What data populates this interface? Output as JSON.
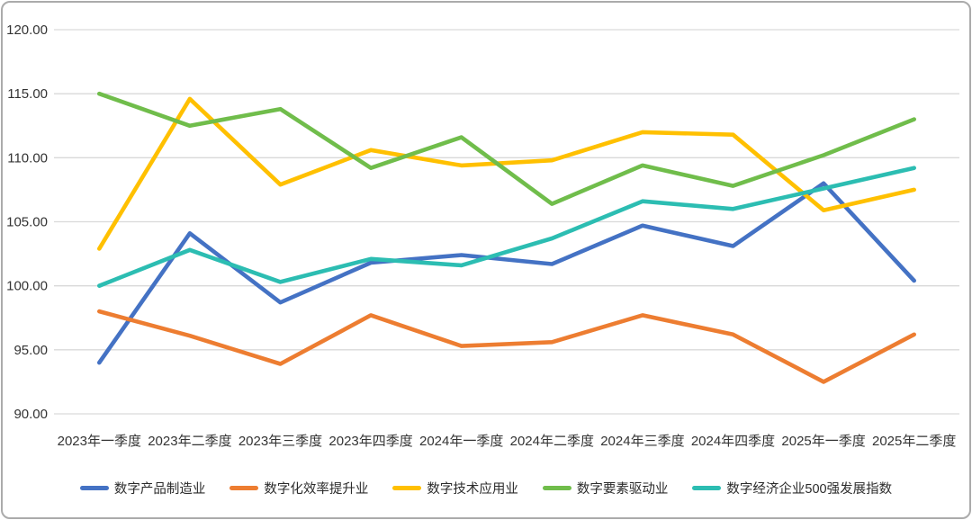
{
  "chart_data": {
    "type": "line",
    "title": "",
    "xlabel": "",
    "ylabel": "",
    "grid": true,
    "legend_position": "bottom",
    "ylim": [
      90,
      120
    ],
    "y_tick_step": 5,
    "y_tick_labels": [
      "90.00",
      "95.00",
      "100.00",
      "105.00",
      "110.00",
      "115.00",
      "120.00"
    ],
    "categories": [
      "2023年一季度",
      "2023年二季度",
      "2023年三季度",
      "2023年四季度",
      "2024年一季度",
      "2024年二季度",
      "2024年三季度",
      "2024年四季度",
      "2025年一季度",
      "2025年二季度"
    ],
    "series": [
      {
        "name": "数字产品制造业",
        "color": "#4472C4",
        "values": [
          94.0,
          104.1,
          98.7,
          101.8,
          102.4,
          101.7,
          104.7,
          103.1,
          108.0,
          100.4
        ]
      },
      {
        "name": "数字化效率提升业",
        "color": "#ED7D31",
        "values": [
          98.0,
          96.1,
          93.9,
          97.7,
          95.3,
          95.6,
          97.7,
          96.2,
          92.5,
          96.2
        ]
      },
      {
        "name": "数字技术应用业",
        "color": "#FFC000",
        "values": [
          102.9,
          114.6,
          107.9,
          110.6,
          109.4,
          109.8,
          112.0,
          111.8,
          105.9,
          107.5
        ]
      },
      {
        "name": "数字要素驱动业",
        "color": "#70BD4B",
        "values": [
          115.0,
          112.5,
          113.8,
          109.2,
          111.6,
          106.4,
          109.4,
          107.8,
          110.2,
          113.0
        ]
      },
      {
        "name": "数字经济企业500强发展指数",
        "color": "#2CBDB2",
        "values": [
          100.0,
          102.8,
          100.3,
          102.1,
          101.6,
          103.7,
          106.6,
          106.0,
          107.6,
          109.2
        ]
      }
    ]
  },
  "frame": {
    "background": "#ffffff",
    "border_color": "#ababab",
    "gridline_color": "#d9d9d9",
    "axis_text_color": "#333333"
  }
}
